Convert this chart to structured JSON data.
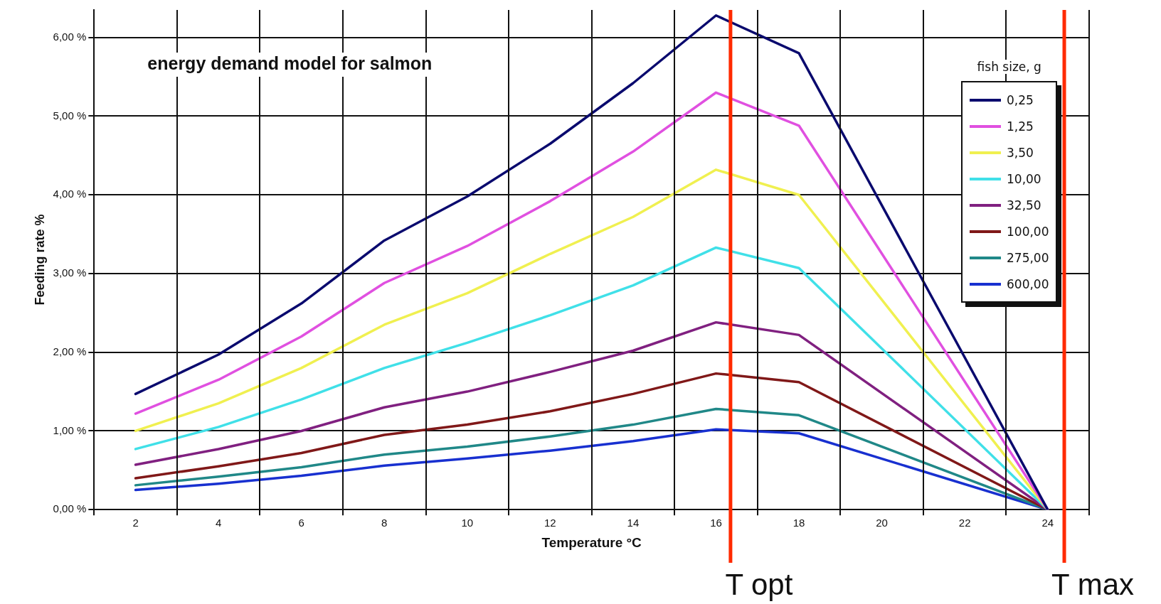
{
  "chart_data": {
    "type": "line",
    "title": "energy demand model for salmon",
    "xlabel": "Temperature °C",
    "ylabel": "Feeding rate %",
    "legend_title": "fish size, g",
    "legend": "top right",
    "grid": true,
    "marker": "none",
    "line_style": "solid",
    "x": [
      2,
      4,
      6,
      8,
      10,
      12,
      14,
      16,
      18,
      24
    ],
    "xlim": [
      1,
      25
    ],
    "xticks": [
      {
        "value": 1,
        "label": null
      },
      2,
      {
        "value": 3,
        "label": null
      },
      4,
      {
        "value": 5,
        "label": null
      },
      6,
      {
        "value": 7,
        "label": null
      },
      8,
      {
        "value": 9,
        "label": null
      },
      10,
      {
        "value": 11,
        "label": null
      },
      12,
      {
        "value": 13,
        "label": null
      },
      14,
      {
        "value": 15,
        "label": null
      },
      16,
      {
        "value": 17,
        "label": null
      },
      18,
      {
        "value": 19,
        "label": null
      },
      20,
      {
        "value": 21,
        "label": null
      },
      22,
      {
        "value": 23,
        "label": null
      },
      24,
      {
        "value": 25,
        "label": null
      }
    ],
    "ylim": [
      0,
      6.35
    ],
    "yticks": [
      {
        "value": 0,
        "label": "0,00 %"
      },
      {
        "value": 1,
        "label": "1,00 %"
      },
      {
        "value": 2,
        "label": "2,00 %"
      },
      {
        "value": 3,
        "label": "3,00 %"
      },
      {
        "value": 4,
        "label": "4,00 %"
      },
      {
        "value": 5,
        "label": "5,00 %"
      },
      {
        "value": 6,
        "label": "6,00 %"
      }
    ],
    "series": [
      {
        "name": "0,25",
        "color": "#0a0a6e",
        "values": [
          1.47,
          1.97,
          2.62,
          3.42,
          3.98,
          4.65,
          5.42,
          6.28,
          5.8,
          0
        ]
      },
      {
        "name": "1,25",
        "color": "#e050e0",
        "values": [
          1.22,
          1.65,
          2.2,
          2.88,
          3.35,
          3.92,
          4.55,
          5.3,
          4.88,
          0
        ]
      },
      {
        "name": "3,50",
        "color": "#f0f050",
        "values": [
          1.0,
          1.35,
          1.8,
          2.35,
          2.75,
          3.25,
          3.72,
          4.32,
          4.0,
          0
        ]
      },
      {
        "name": "10,00",
        "color": "#40e0e8",
        "values": [
          0.77,
          1.05,
          1.4,
          1.8,
          2.12,
          2.47,
          2.85,
          3.33,
          3.07,
          0
        ]
      },
      {
        "name": "32,50",
        "color": "#802080",
        "values": [
          0.57,
          0.77,
          1.0,
          1.3,
          1.5,
          1.75,
          2.02,
          2.38,
          2.22,
          0
        ]
      },
      {
        "name": "100,00",
        "color": "#801818",
        "values": [
          0.4,
          0.55,
          0.72,
          0.95,
          1.08,
          1.25,
          1.47,
          1.73,
          1.62,
          0
        ]
      },
      {
        "name": "275,00",
        "color": "#208888",
        "values": [
          0.31,
          0.42,
          0.54,
          0.7,
          0.8,
          0.93,
          1.08,
          1.28,
          1.2,
          0
        ]
      },
      {
        "name": "600,00",
        "color": "#1830d0",
        "values": [
          0.25,
          0.33,
          0.43,
          0.56,
          0.65,
          0.75,
          0.87,
          1.02,
          0.97,
          0
        ]
      }
    ],
    "ref_lines": [
      {
        "axis": "x",
        "value": 16.35,
        "label": "T opt",
        "color": "#ff2a00"
      },
      {
        "axis": "x",
        "value": 24.4,
        "label": "T max",
        "color": "#ff2a00"
      }
    ]
  }
}
